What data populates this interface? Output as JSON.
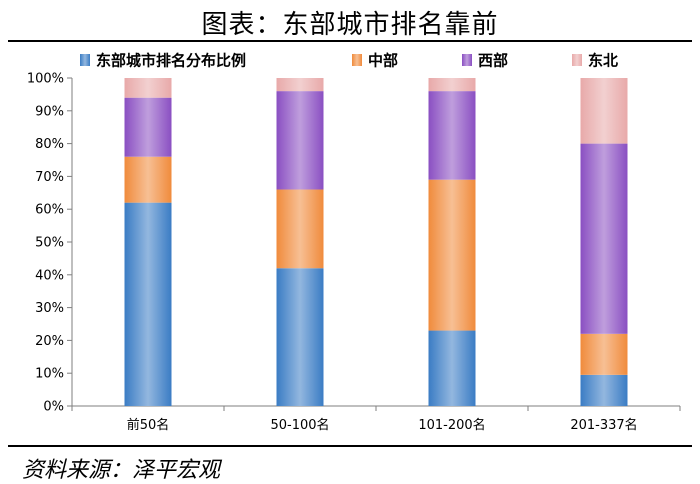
{
  "title": "图表：东部城市排名靠前",
  "source": "资料来源：泽平宏观",
  "chart_data": {
    "type": "bar",
    "stacked": true,
    "categories": [
      "前50名",
      "50-100名",
      "101-200名",
      "201-337名"
    ],
    "series": [
      {
        "name": "东部城市排名分布比例",
        "color": "#3a7cc4",
        "values": [
          62,
          42,
          23,
          9.5
        ]
      },
      {
        "name": "中部",
        "color": "#f08b3c",
        "values": [
          14,
          24,
          46,
          12.5
        ]
      },
      {
        "name": "西部",
        "color": "#8a4fc2",
        "values": [
          18,
          30,
          27,
          58
        ]
      },
      {
        "name": "东北",
        "color": "#e8a9a9",
        "values": [
          6,
          4,
          4,
          20
        ]
      }
    ],
    "ylim": [
      0,
      100
    ],
    "yticks": [
      "0%",
      "10%",
      "20%",
      "30%",
      "40%",
      "50%",
      "60%",
      "70%",
      "80%",
      "90%",
      "100%"
    ],
    "legend_position": "top",
    "grid": false
  }
}
